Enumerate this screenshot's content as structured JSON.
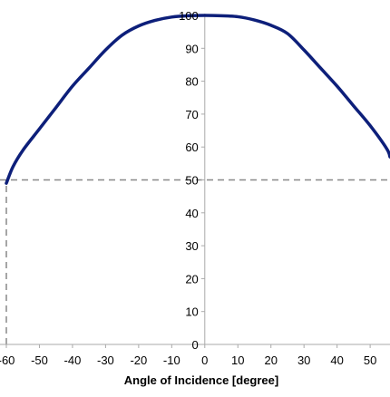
{
  "chart_data": {
    "type": "line",
    "title": "",
    "xlabel": "Angle of Incidence [degree]",
    "ylabel": "",
    "xlim": [
      -60,
      56
    ],
    "ylim": [
      0,
      100
    ],
    "x_ticks": [
      -60,
      -50,
      -40,
      -30,
      -20,
      -10,
      0,
      10,
      20,
      30,
      40,
      50
    ],
    "y_ticks": [
      0,
      10,
      20,
      30,
      40,
      50,
      60,
      70,
      80,
      90,
      100
    ],
    "grid": false,
    "legend": "none",
    "series": [
      {
        "color": "#0d1f7a",
        "x": [
          -60,
          -58,
          -55,
          -50,
          -45,
          -40,
          -35,
          -30,
          -25,
          -20,
          -15,
          -10,
          -5,
          0,
          5,
          10,
          15,
          20,
          25,
          30,
          35,
          40,
          45,
          50,
          55,
          56
        ],
        "y": [
          49,
          54,
          59,
          65.5,
          72,
          78.5,
          84,
          89.5,
          94,
          96.8,
          98.5,
          99.5,
          99.9,
          100,
          99.9,
          99.6,
          98.6,
          97,
          94.5,
          89.5,
          84,
          78.5,
          72.5,
          66.5,
          59.5,
          57
        ]
      }
    ],
    "reference_lines": [
      {
        "orientation": "horizontal",
        "value": 50,
        "color": "#888888",
        "style": "dashed"
      },
      {
        "orientation": "vertical",
        "value": -60,
        "color": "#888888",
        "style": "dashed"
      }
    ]
  }
}
